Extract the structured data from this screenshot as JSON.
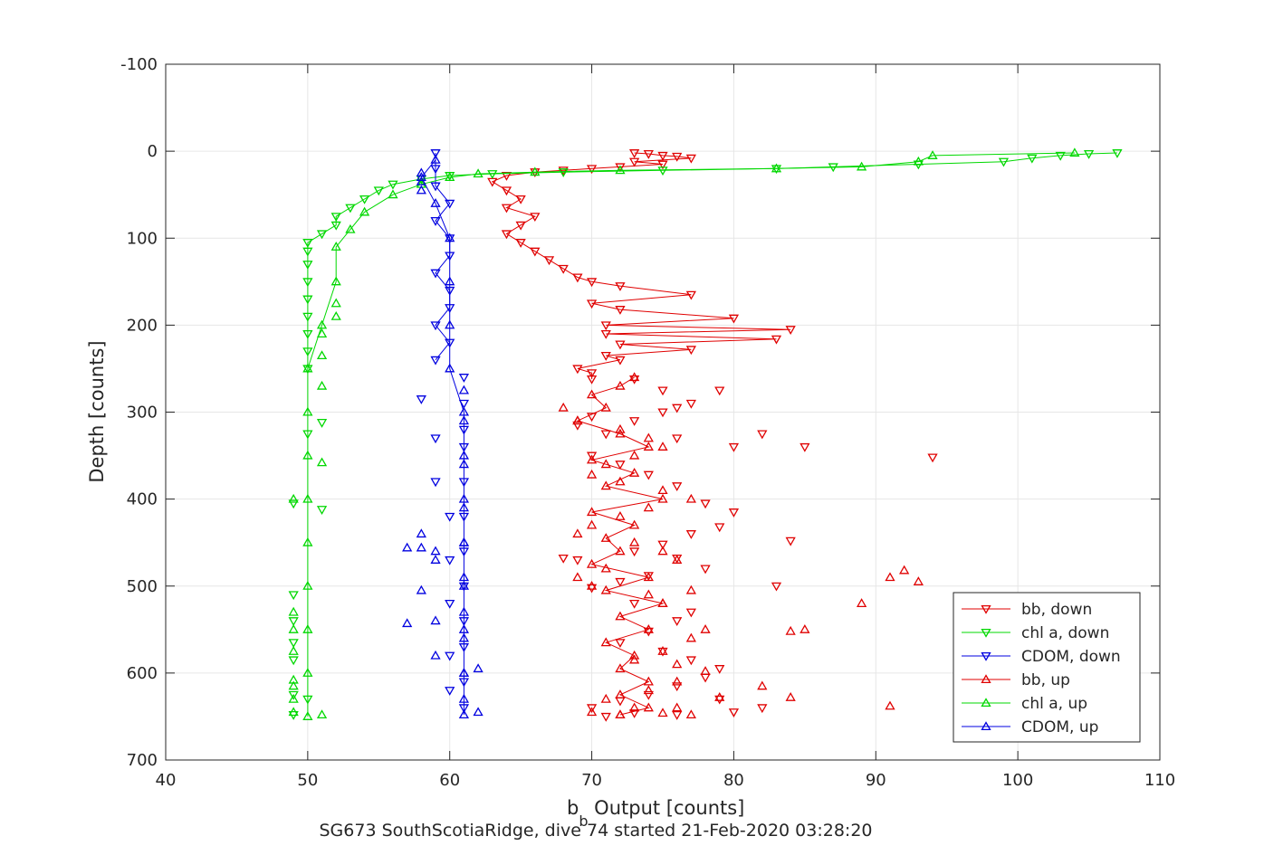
{
  "chart_data": {
    "type": "scatter",
    "title": "",
    "caption": "SG673 SouthScotiaRidge, dive 74 started 21-Feb-2020 03:28:20",
    "xlabel_main": "b",
    "xlabel_sub": "b",
    "xlabel_rest": " Output [counts]",
    "ylabel": "Depth [counts]",
    "xlim": [
      40,
      110
    ],
    "ylim": [
      -100,
      700
    ],
    "y_reversed": true,
    "grid": true,
    "legend_position": "bottom-right",
    "x_ticks": [
      "40",
      "50",
      "60",
      "70",
      "80",
      "90",
      "100",
      "110"
    ],
    "y_ticks": [
      "-100",
      "0",
      "100",
      "200",
      "300",
      "400",
      "500",
      "600",
      "700"
    ],
    "series": [
      {
        "name": "bb, down",
        "color": "#e00000",
        "marker": "triangle-down",
        "line": true,
        "points": [
          [
            73,
            2
          ],
          [
            74,
            3
          ],
          [
            75,
            5
          ],
          [
            76,
            6
          ],
          [
            77,
            8
          ],
          [
            73,
            12
          ],
          [
            75,
            15
          ],
          [
            72,
            18
          ],
          [
            70,
            20
          ],
          [
            68,
            22
          ],
          [
            66,
            24
          ],
          [
            64,
            28
          ],
          [
            63,
            35
          ],
          [
            64,
            45
          ],
          [
            65,
            55
          ],
          [
            64,
            65
          ],
          [
            66,
            75
          ],
          [
            65,
            85
          ],
          [
            64,
            95
          ],
          [
            65,
            105
          ],
          [
            66,
            115
          ],
          [
            67,
            125
          ],
          [
            68,
            135
          ],
          [
            69,
            145
          ],
          [
            70,
            150
          ],
          [
            72,
            155
          ],
          [
            77,
            165
          ],
          [
            70,
            175
          ],
          [
            72,
            182
          ],
          [
            80,
            192
          ],
          [
            71,
            200
          ],
          [
            84,
            205
          ],
          [
            71,
            210
          ],
          [
            83,
            216
          ],
          [
            72,
            222
          ],
          [
            77,
            228
          ],
          [
            71,
            235
          ],
          [
            72,
            240
          ],
          [
            69,
            250
          ],
          [
            70,
            255
          ],
          [
            70,
            262
          ]
        ]
      },
      {
        "name": "chl a, down",
        "color": "#00d800",
        "marker": "triangle-down",
        "line": true,
        "points": [
          [
            107,
            2
          ],
          [
            105,
            3
          ],
          [
            103,
            5
          ],
          [
            101,
            8
          ],
          [
            99,
            12
          ],
          [
            93,
            15
          ],
          [
            87,
            18
          ],
          [
            83,
            20
          ],
          [
            75,
            22
          ],
          [
            68,
            24
          ],
          [
            63,
            26
          ],
          [
            60,
            28
          ],
          [
            58,
            32
          ],
          [
            56,
            38
          ],
          [
            55,
            45
          ],
          [
            54,
            55
          ],
          [
            53,
            65
          ],
          [
            52,
            75
          ],
          [
            52,
            85
          ],
          [
            51,
            95
          ],
          [
            50,
            105
          ],
          [
            50,
            115
          ],
          [
            50,
            130
          ],
          [
            50,
            150
          ],
          [
            50,
            170
          ],
          [
            50,
            190
          ],
          [
            50,
            210
          ],
          [
            50,
            230
          ],
          [
            50,
            250
          ]
        ]
      },
      {
        "name": "CDOM, down",
        "color": "#0000e0",
        "marker": "triangle-down",
        "line": true,
        "points": [
          [
            59,
            2
          ],
          [
            59,
            20
          ],
          [
            59,
            40
          ],
          [
            60,
            60
          ],
          [
            59,
            80
          ],
          [
            60,
            100
          ],
          [
            60,
            120
          ],
          [
            59,
            140
          ],
          [
            60,
            160
          ],
          [
            60,
            180
          ],
          [
            59,
            200
          ],
          [
            60,
            220
          ],
          [
            59,
            240
          ]
        ]
      },
      {
        "name": "bb, up",
        "color": "#e00000",
        "marker": "triangle-up",
        "line": true,
        "points": [
          [
            73,
            260
          ],
          [
            72,
            270
          ],
          [
            70,
            280
          ],
          [
            71,
            295
          ],
          [
            69,
            310
          ],
          [
            72,
            325
          ],
          [
            74,
            340
          ],
          [
            70,
            355
          ],
          [
            73,
            370
          ],
          [
            71,
            385
          ],
          [
            75,
            400
          ],
          [
            70,
            415
          ],
          [
            73,
            430
          ],
          [
            71,
            445
          ],
          [
            72,
            460
          ],
          [
            70,
            475
          ],
          [
            74,
            490
          ],
          [
            71,
            505
          ],
          [
            75,
            520
          ],
          [
            72,
            535
          ],
          [
            74,
            550
          ],
          [
            71,
            565
          ],
          [
            73,
            580
          ],
          [
            72,
            595
          ],
          [
            74,
            610
          ],
          [
            72,
            625
          ],
          [
            74,
            640
          ],
          [
            72,
            648
          ]
        ]
      },
      {
        "name": "chl a, up",
        "color": "#00d800",
        "marker": "triangle-up",
        "line": true,
        "points": [
          [
            50,
            650
          ],
          [
            50,
            600
          ],
          [
            50,
            550
          ],
          [
            50,
            500
          ],
          [
            50,
            450
          ],
          [
            50,
            400
          ],
          [
            50,
            350
          ],
          [
            50,
            300
          ],
          [
            50,
            250
          ],
          [
            51,
            200
          ],
          [
            52,
            150
          ],
          [
            52,
            110
          ],
          [
            53,
            90
          ],
          [
            54,
            70
          ],
          [
            56,
            50
          ],
          [
            58,
            38
          ],
          [
            60,
            30
          ],
          [
            62,
            26
          ],
          [
            66,
            24
          ],
          [
            72,
            22
          ],
          [
            83,
            20
          ],
          [
            89,
            18
          ],
          [
            93,
            12
          ],
          [
            94,
            5
          ],
          [
            104,
            2
          ]
        ]
      },
      {
        "name": "CDOM, up",
        "color": "#0000e0",
        "marker": "triangle-up",
        "line": true,
        "points": [
          [
            61,
            648
          ],
          [
            61,
            600
          ],
          [
            61,
            550
          ],
          [
            61,
            500
          ],
          [
            61,
            450
          ],
          [
            61,
            400
          ],
          [
            61,
            350
          ],
          [
            61,
            300
          ],
          [
            60,
            250
          ],
          [
            60,
            200
          ],
          [
            60,
            150
          ],
          [
            60,
            100
          ],
          [
            59,
            60
          ],
          [
            58,
            30
          ],
          [
            59,
            10
          ]
        ]
      }
    ],
    "scatter_extra": {
      "bb_down": [
        [
          73,
          262
        ],
        [
          75,
          275
        ],
        [
          77,
          290
        ],
        [
          76,
          295
        ],
        [
          79,
          275
        ],
        [
          80,
          340
        ],
        [
          82,
          325
        ],
        [
          76,
          330
        ],
        [
          75,
          300
        ],
        [
          73,
          310
        ],
        [
          71,
          325
        ],
        [
          70,
          305
        ],
        [
          69,
          315
        ],
        [
          70,
          350
        ],
        [
          72,
          360
        ],
        [
          74,
          372
        ],
        [
          76,
          385
        ],
        [
          78,
          405
        ],
        [
          80,
          415
        ],
        [
          79,
          432
        ],
        [
          77,
          440
        ],
        [
          75,
          452
        ],
        [
          84,
          448
        ],
        [
          73,
          460
        ],
        [
          76,
          468
        ],
        [
          78,
          480
        ],
        [
          74,
          488
        ],
        [
          72,
          495
        ],
        [
          70,
          502
        ],
        [
          69,
          470
        ],
        [
          83,
          500
        ],
        [
          73,
          520
        ],
        [
          77,
          530
        ],
        [
          76,
          540
        ],
        [
          74,
          552
        ],
        [
          72,
          565
        ],
        [
          75,
          575
        ],
        [
          77,
          585
        ],
        [
          79,
          595
        ],
        [
          78,
          605
        ],
        [
          76,
          615
        ],
        [
          74,
          625
        ],
        [
          72,
          632
        ],
        [
          70,
          640
        ],
        [
          82,
          640
        ],
        [
          80,
          645
        ],
        [
          79,
          630
        ],
        [
          76,
          648
        ],
        [
          73,
          646
        ],
        [
          71,
          650
        ],
        [
          94,
          352
        ],
        [
          85,
          340
        ],
        [
          68,
          468
        ]
      ],
      "bb_up": [
        [
          68,
          295
        ],
        [
          69,
          310
        ],
        [
          72,
          320
        ],
        [
          74,
          330
        ],
        [
          75,
          340
        ],
        [
          73,
          350
        ],
        [
          71,
          360
        ],
        [
          70,
          372
        ],
        [
          72,
          380
        ],
        [
          75,
          390
        ],
        [
          77,
          400
        ],
        [
          74,
          410
        ],
        [
          72,
          420
        ],
        [
          70,
          430
        ],
        [
          69,
          440
        ],
        [
          73,
          450
        ],
        [
          75,
          460
        ],
        [
          76,
          470
        ],
        [
          71,
          480
        ],
        [
          69,
          490
        ],
        [
          70,
          500
        ],
        [
          74,
          510
        ],
        [
          77,
          505
        ],
        [
          75,
          520
        ],
        [
          89,
          520
        ],
        [
          91,
          490
        ],
        [
          92,
          482
        ],
        [
          93,
          495
        ],
        [
          84,
          552
        ],
        [
          85,
          550
        ],
        [
          78,
          550
        ],
        [
          77,
          560
        ],
        [
          75,
          575
        ],
        [
          73,
          585
        ],
        [
          76,
          590
        ],
        [
          78,
          598
        ],
        [
          76,
          610
        ],
        [
          74,
          620
        ],
        [
          71,
          630
        ],
        [
          73,
          640
        ],
        [
          75,
          646
        ],
        [
          77,
          648
        ],
        [
          84,
          628
        ],
        [
          91,
          638
        ],
        [
          82,
          615
        ],
        [
          79,
          628
        ],
        [
          76,
          640
        ],
        [
          72,
          648
        ],
        [
          70,
          645
        ]
      ],
      "chl_down": [
        [
          49,
          405
        ],
        [
          49,
          510
        ],
        [
          49,
          540
        ],
        [
          49,
          565
        ],
        [
          49,
          585
        ],
        [
          49,
          625
        ],
        [
          49,
          648
        ],
        [
          50,
          630
        ],
        [
          51,
          412
        ],
        [
          51,
          312
        ],
        [
          50,
          325
        ]
      ],
      "chl_up": [
        [
          49,
          400
        ],
        [
          49,
          530
        ],
        [
          49,
          550
        ],
        [
          49,
          575
        ],
        [
          49,
          608
        ],
        [
          49,
          615
        ],
        [
          49,
          630
        ],
        [
          49,
          645
        ],
        [
          51,
          648
        ],
        [
          51,
          358
        ],
        [
          51,
          270
        ],
        [
          52,
          175
        ],
        [
          52,
          190
        ],
        [
          51,
          210
        ],
        [
          51,
          235
        ]
      ],
      "cdom_down": [
        [
          61,
          260
        ],
        [
          61,
          290
        ],
        [
          61,
          320
        ],
        [
          61,
          340
        ],
        [
          61,
          380
        ],
        [
          61,
          420
        ],
        [
          61,
          460
        ],
        [
          61,
          500
        ],
        [
          61,
          540
        ],
        [
          61,
          570
        ],
        [
          61,
          610
        ],
        [
          61,
          640
        ],
        [
          58,
          285
        ],
        [
          59,
          330
        ],
        [
          59,
          380
        ],
        [
          60,
          420
        ],
        [
          60,
          470
        ],
        [
          60,
          520
        ],
        [
          60,
          580
        ],
        [
          60,
          620
        ]
      ],
      "cdom_up": [
        [
          61,
          275
        ],
        [
          61,
          310
        ],
        [
          61,
          360
        ],
        [
          61,
          410
        ],
        [
          61,
          450
        ],
        [
          61,
          490
        ],
        [
          61,
          530
        ],
        [
          61,
          560
        ],
        [
          61,
          600
        ],
        [
          61,
          630
        ],
        [
          58,
          505
        ],
        [
          58,
          440
        ],
        [
          58,
          456
        ],
        [
          57,
          456
        ],
        [
          57,
          543
        ],
        [
          59,
          540
        ],
        [
          59,
          580
        ],
        [
          62,
          595
        ],
        [
          62,
          645
        ],
        [
          59,
          460
        ],
        [
          59,
          470
        ],
        [
          58,
          25
        ],
        [
          58,
          35
        ],
        [
          58,
          45
        ]
      ]
    }
  }
}
